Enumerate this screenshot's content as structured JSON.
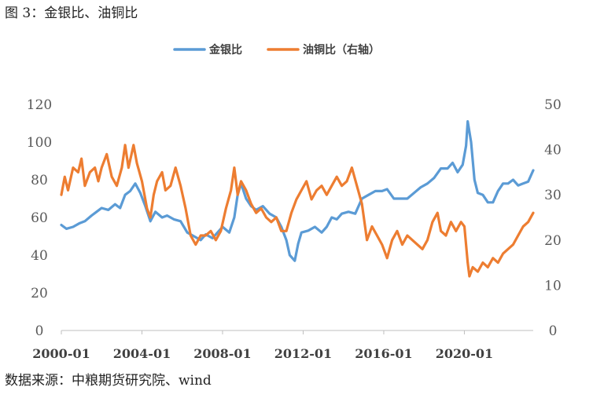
{
  "figure": {
    "title": "图 3：金银比、油铜比",
    "source": "数据来源：中粮期货研究院、wind"
  },
  "chart_data": {
    "type": "line",
    "title": "",
    "xlabel": "",
    "ylabel": "",
    "x_tick_labels": [
      "2000-01",
      "2004-01",
      "2008-01",
      "2012-01",
      "2016-01",
      "2020-01"
    ],
    "x_start": "2000-01",
    "x_end": "2023-06",
    "y_left": {
      "ylim": [
        0,
        120
      ],
      "ticks": [
        0,
        20,
        40,
        60,
        80,
        100,
        120
      ]
    },
    "y_right": {
      "ylim": [
        0,
        50
      ],
      "ticks": [
        0,
        10,
        20,
        30,
        40,
        50
      ]
    },
    "legend": {
      "position": "top-center"
    },
    "grid": false,
    "series": [
      {
        "name": "金银比",
        "axis": "left",
        "color": "#5b9bd5",
        "points": [
          [
            "2000-01",
            56
          ],
          [
            "2000-04",
            54
          ],
          [
            "2000-08",
            55
          ],
          [
            "2000-12",
            57
          ],
          [
            "2001-03",
            58
          ],
          [
            "2001-07",
            61
          ],
          [
            "2001-10",
            63
          ],
          [
            "2002-01",
            65
          ],
          [
            "2002-05",
            64
          ],
          [
            "2002-09",
            67
          ],
          [
            "2002-12",
            65
          ],
          [
            "2003-03",
            72
          ],
          [
            "2003-06",
            74
          ],
          [
            "2003-09",
            78
          ],
          [
            "2003-12",
            73
          ],
          [
            "2004-03",
            66
          ],
          [
            "2004-06",
            58
          ],
          [
            "2004-09",
            63
          ],
          [
            "2005-01",
            60
          ],
          [
            "2005-04",
            61
          ],
          [
            "2005-08",
            59
          ],
          [
            "2005-12",
            58
          ],
          [
            "2006-04",
            52
          ],
          [
            "2006-08",
            50
          ],
          [
            "2006-12",
            48
          ],
          [
            "2007-03",
            51
          ],
          [
            "2007-07",
            49
          ],
          [
            "2007-10",
            52
          ],
          [
            "2008-01",
            55
          ],
          [
            "2008-05",
            52
          ],
          [
            "2008-08",
            60
          ],
          [
            "2008-10",
            72
          ],
          [
            "2008-12",
            78
          ],
          [
            "2009-03",
            70
          ],
          [
            "2009-06",
            66
          ],
          [
            "2009-09",
            64
          ],
          [
            "2010-01",
            66
          ],
          [
            "2010-05",
            62
          ],
          [
            "2010-09",
            60
          ],
          [
            "2010-12",
            55
          ],
          [
            "2011-03",
            48
          ],
          [
            "2011-05",
            40
          ],
          [
            "2011-08",
            37
          ],
          [
            "2011-10",
            46
          ],
          [
            "2011-12",
            52
          ],
          [
            "2012-04",
            53
          ],
          [
            "2012-08",
            55
          ],
          [
            "2012-12",
            52
          ],
          [
            "2013-03",
            55
          ],
          [
            "2013-06",
            60
          ],
          [
            "2013-09",
            59
          ],
          [
            "2013-12",
            62
          ],
          [
            "2014-04",
            63
          ],
          [
            "2014-08",
            62
          ],
          [
            "2014-12",
            70
          ],
          [
            "2015-04",
            72
          ],
          [
            "2015-08",
            74
          ],
          [
            "2015-12",
            74
          ],
          [
            "2016-03",
            75
          ],
          [
            "2016-07",
            70
          ],
          [
            "2016-11",
            70
          ],
          [
            "2017-03",
            70
          ],
          [
            "2017-07",
            73
          ],
          [
            "2017-11",
            76
          ],
          [
            "2018-03",
            78
          ],
          [
            "2018-07",
            81
          ],
          [
            "2018-11",
            86
          ],
          [
            "2019-03",
            86
          ],
          [
            "2019-06",
            89
          ],
          [
            "2019-09",
            84
          ],
          [
            "2019-12",
            88
          ],
          [
            "2020-02",
            98
          ],
          [
            "2020-03",
            111
          ],
          [
            "2020-05",
            100
          ],
          [
            "2020-07",
            80
          ],
          [
            "2020-09",
            73
          ],
          [
            "2020-12",
            72
          ],
          [
            "2021-03",
            68
          ],
          [
            "2021-06",
            68
          ],
          [
            "2021-09",
            74
          ],
          [
            "2021-12",
            78
          ],
          [
            "2022-03",
            78
          ],
          [
            "2022-06",
            80
          ],
          [
            "2022-09",
            77
          ],
          [
            "2022-12",
            78
          ],
          [
            "2023-03",
            79
          ],
          [
            "2023-06",
            85
          ]
        ]
      },
      {
        "name": "油铜比（右轴）",
        "axis": "right",
        "color": "#ed7d31",
        "points": [
          [
            "2000-01",
            30
          ],
          [
            "2000-03",
            34
          ],
          [
            "2000-05",
            31
          ],
          [
            "2000-08",
            36
          ],
          [
            "2000-11",
            35
          ],
          [
            "2001-01",
            38
          ],
          [
            "2001-03",
            32
          ],
          [
            "2001-06",
            35
          ],
          [
            "2001-09",
            36
          ],
          [
            "2001-11",
            33
          ],
          [
            "2002-01",
            36
          ],
          [
            "2002-04",
            39
          ],
          [
            "2002-07",
            34
          ],
          [
            "2002-10",
            32
          ],
          [
            "2003-01",
            36
          ],
          [
            "2003-03",
            41
          ],
          [
            "2003-05",
            36
          ],
          [
            "2003-08",
            41
          ],
          [
            "2003-10",
            37
          ],
          [
            "2004-01",
            33
          ],
          [
            "2004-04",
            27
          ],
          [
            "2004-06",
            25
          ],
          [
            "2004-08",
            30
          ],
          [
            "2004-10",
            33
          ],
          [
            "2005-01",
            35
          ],
          [
            "2005-03",
            31
          ],
          [
            "2005-06",
            32
          ],
          [
            "2005-09",
            36
          ],
          [
            "2005-12",
            32
          ],
          [
            "2006-03",
            27
          ],
          [
            "2006-06",
            21
          ],
          [
            "2006-09",
            19
          ],
          [
            "2006-12",
            21
          ],
          [
            "2007-03",
            21
          ],
          [
            "2007-06",
            22
          ],
          [
            "2007-09",
            20
          ],
          [
            "2007-12",
            22
          ],
          [
            "2008-03",
            27
          ],
          [
            "2008-06",
            31
          ],
          [
            "2008-08",
            36
          ],
          [
            "2008-10",
            30
          ],
          [
            "2008-12",
            33
          ],
          [
            "2009-03",
            31
          ],
          [
            "2009-06",
            28
          ],
          [
            "2009-09",
            26
          ],
          [
            "2009-12",
            27
          ],
          [
            "2010-03",
            25
          ],
          [
            "2010-06",
            24
          ],
          [
            "2010-09",
            25
          ],
          [
            "2010-12",
            22
          ],
          [
            "2011-03",
            22
          ],
          [
            "2011-06",
            26
          ],
          [
            "2011-09",
            29
          ],
          [
            "2011-12",
            31
          ],
          [
            "2012-03",
            33
          ],
          [
            "2012-06",
            29
          ],
          [
            "2012-09",
            31
          ],
          [
            "2012-12",
            32
          ],
          [
            "2013-03",
            30
          ],
          [
            "2013-06",
            32
          ],
          [
            "2013-09",
            34
          ],
          [
            "2013-12",
            32
          ],
          [
            "2014-03",
            33
          ],
          [
            "2014-06",
            36
          ],
          [
            "2014-09",
            32
          ],
          [
            "2014-12",
            28
          ],
          [
            "2015-03",
            20
          ],
          [
            "2015-06",
            23
          ],
          [
            "2015-09",
            21
          ],
          [
            "2015-12",
            19
          ],
          [
            "2016-03",
            16
          ],
          [
            "2016-06",
            20
          ],
          [
            "2016-09",
            22
          ],
          [
            "2016-12",
            19
          ],
          [
            "2017-03",
            21
          ],
          [
            "2017-06",
            20
          ],
          [
            "2017-09",
            19
          ],
          [
            "2017-12",
            18
          ],
          [
            "2018-03",
            20
          ],
          [
            "2018-06",
            24
          ],
          [
            "2018-09",
            26
          ],
          [
            "2018-11",
            22
          ],
          [
            "2019-02",
            21
          ],
          [
            "2019-05",
            24
          ],
          [
            "2019-08",
            22
          ],
          [
            "2019-11",
            24
          ],
          [
            "2020-01",
            23
          ],
          [
            "2020-03",
            15
          ],
          [
            "2020-04",
            12
          ],
          [
            "2020-06",
            14
          ],
          [
            "2020-09",
            13
          ],
          [
            "2020-12",
            15
          ],
          [
            "2021-03",
            14
          ],
          [
            "2021-06",
            16
          ],
          [
            "2021-09",
            15
          ],
          [
            "2021-12",
            17
          ],
          [
            "2022-03",
            18
          ],
          [
            "2022-06",
            19
          ],
          [
            "2022-09",
            21
          ],
          [
            "2022-12",
            23
          ],
          [
            "2023-03",
            24
          ],
          [
            "2023-06",
            26
          ]
        ]
      }
    ]
  }
}
